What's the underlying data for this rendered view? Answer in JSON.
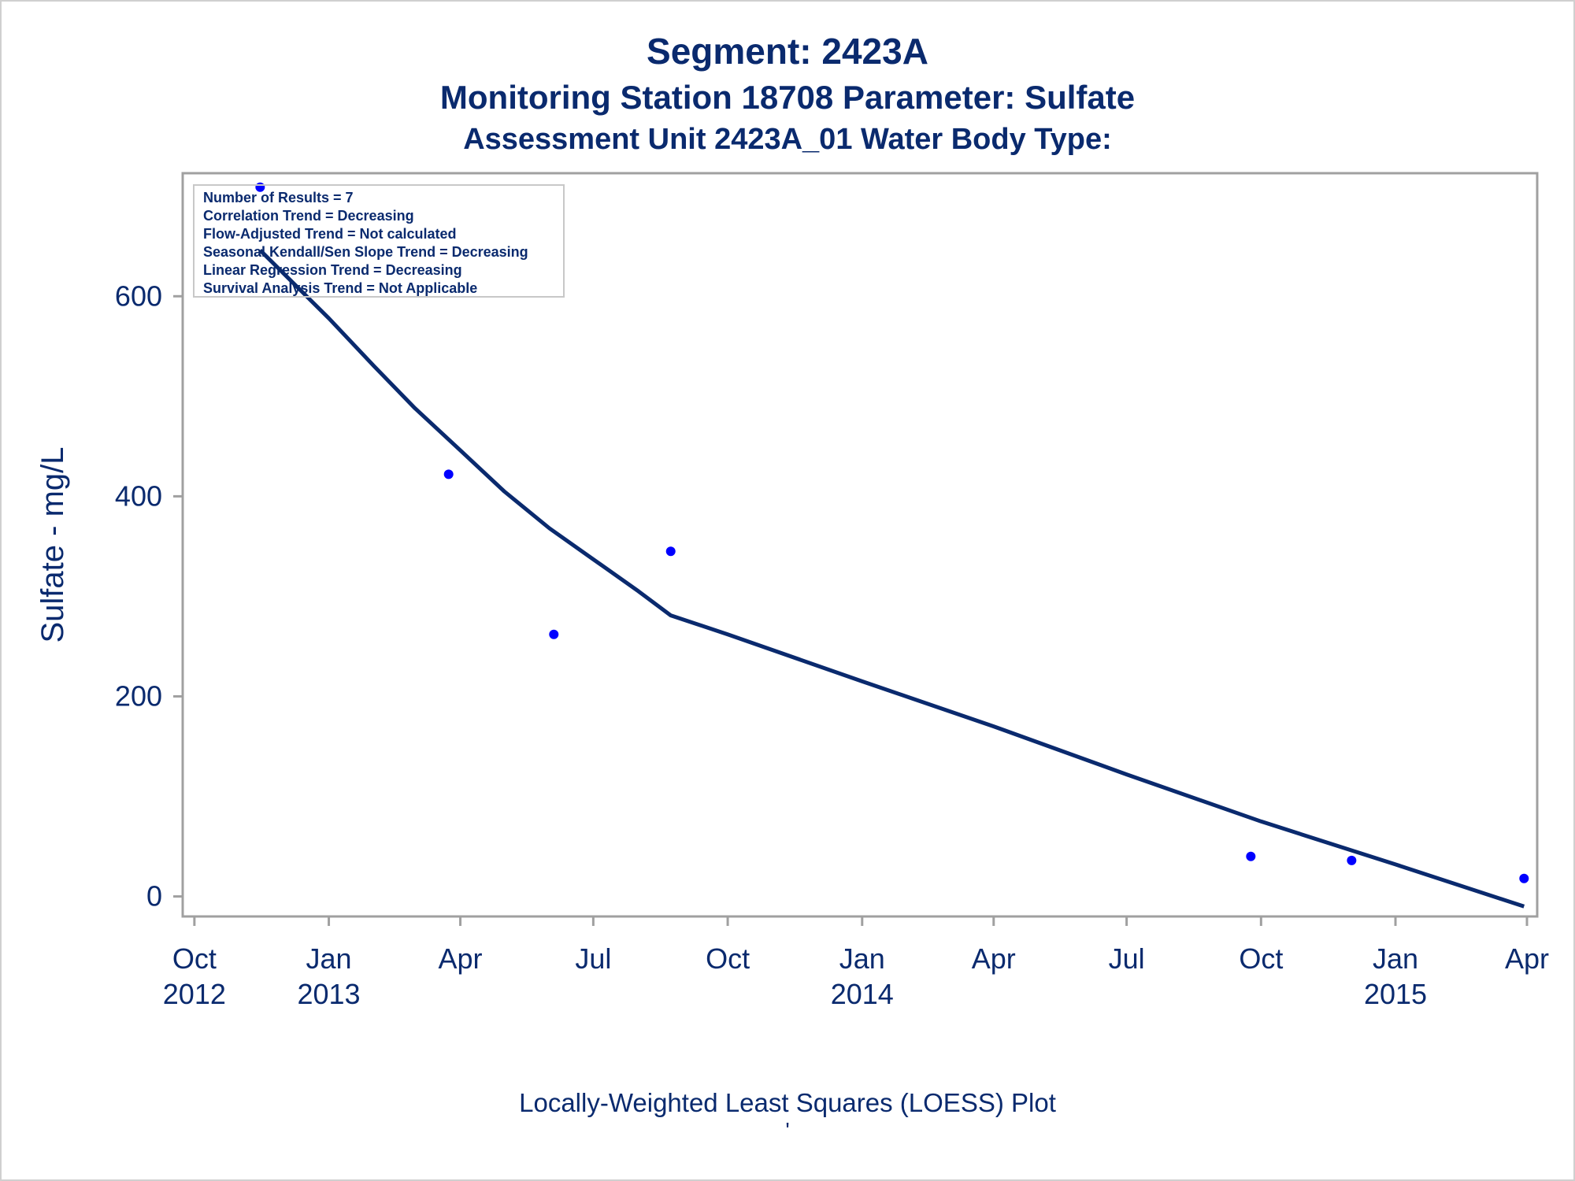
{
  "titles": {
    "line1": "Segment: 2423A",
    "line2": "Monitoring Station 18708 Parameter: Sulfate",
    "line3": "Assessment Unit 2423A_01   Water Body Type:"
  },
  "footnotes": {
    "line1": "Locally-Weighted Least Squares (LOESS) Plot",
    "line2": "'"
  },
  "stats_box": [
    "Number of Results = 7",
    "Correlation Trend = Decreasing",
    "Flow-Adjusted Trend = Not calculated",
    "Seasonal Kendall/Sen Slope Trend = Decreasing",
    "Linear Regression Trend = Decreasing",
    "Survival Analysis Trend = Not Applicable"
  ],
  "colors": {
    "text": "#0a2a6e",
    "points": "#0000ff",
    "line": "#0a2a6e",
    "axis": "#a0a0a0"
  },
  "chart_data": {
    "type": "scatter",
    "title": "Segment: 2423A",
    "xlabel": "",
    "ylabel": "Sulfate - mg/L",
    "xlim": [
      "2012-09-23",
      "2015-04-08"
    ],
    "ylim": [
      -20,
      723
    ],
    "grid": false,
    "x_ticks": [
      {
        "date": "2012-10-01",
        "label": [
          "Oct",
          "2012"
        ]
      },
      {
        "date": "2013-01-01",
        "label": [
          "Jan",
          "2013"
        ]
      },
      {
        "date": "2013-04-01",
        "label": [
          "Apr",
          ""
        ]
      },
      {
        "date": "2013-07-01",
        "label": [
          "Jul",
          ""
        ]
      },
      {
        "date": "2013-10-01",
        "label": [
          "Oct",
          ""
        ]
      },
      {
        "date": "2014-01-01",
        "label": [
          "Jan",
          "2014"
        ]
      },
      {
        "date": "2014-04-01",
        "label": [
          "Apr",
          ""
        ]
      },
      {
        "date": "2014-07-01",
        "label": [
          "Jul",
          ""
        ]
      },
      {
        "date": "2014-10-01",
        "label": [
          "Oct",
          ""
        ]
      },
      {
        "date": "2015-01-01",
        "label": [
          "Jan",
          "2015"
        ]
      },
      {
        "date": "2015-04-01",
        "label": [
          "Apr",
          ""
        ]
      }
    ],
    "y_ticks": [
      0,
      200,
      400,
      600
    ],
    "series": [
      {
        "type": "scatter",
        "points": [
          {
            "x": "2012-11-15",
            "y": 709
          },
          {
            "x": "2013-03-24",
            "y": 422
          },
          {
            "x": "2013-06-04",
            "y": 262
          },
          {
            "x": "2013-08-23",
            "y": 345
          },
          {
            "x": "2014-09-24",
            "y": 40
          },
          {
            "x": "2014-12-02",
            "y": 36
          },
          {
            "x": "2015-03-30",
            "y": 18
          }
        ]
      },
      {
        "type": "line",
        "points": [
          {
            "x": "2012-11-15",
            "y": 646
          },
          {
            "x": "2013-01-01",
            "y": 578
          },
          {
            "x": "2013-02-01",
            "y": 530
          },
          {
            "x": "2013-03-01",
            "y": 488
          },
          {
            "x": "2013-04-01",
            "y": 446
          },
          {
            "x": "2013-05-01",
            "y": 405
          },
          {
            "x": "2013-06-01",
            "y": 368
          },
          {
            "x": "2013-07-01",
            "y": 337
          },
          {
            "x": "2013-08-01",
            "y": 305
          },
          {
            "x": "2013-08-23",
            "y": 281
          },
          {
            "x": "2013-10-01",
            "y": 262
          },
          {
            "x": "2014-01-01",
            "y": 215
          },
          {
            "x": "2014-04-01",
            "y": 170
          },
          {
            "x": "2014-07-01",
            "y": 122
          },
          {
            "x": "2014-10-01",
            "y": 75
          },
          {
            "x": "2015-01-01",
            "y": 32
          },
          {
            "x": "2015-03-30",
            "y": -10
          }
        ]
      }
    ]
  }
}
